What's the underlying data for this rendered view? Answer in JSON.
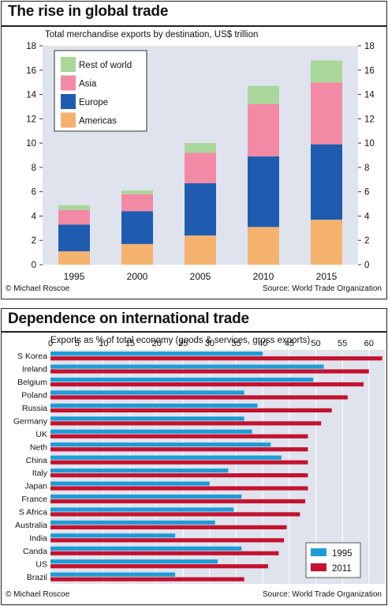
{
  "top": {
    "title": "The rise in global trade",
    "subtitle": "Total merchandise exports by destination, US$ trillion",
    "credit_left": "© Michael Roscoe",
    "credit_right": "Source: World Trade Organization"
  },
  "bottom": {
    "title": "Dependence on international trade",
    "subtitle": "Exports as % of total economy (goods & services, gross exports)",
    "credit_left": "© Michael Roscoe",
    "credit_right": "Source: World Trade Organization"
  },
  "chart_data": [
    {
      "type": "bar",
      "stacked": true,
      "title": "The rise in global trade",
      "subtitle": "Total merchandise exports by destination, US$ trillion",
      "categories": [
        "1995",
        "2000",
        "2005",
        "2010",
        "2015"
      ],
      "series": [
        {
          "name": "Americas",
          "color": "#f5b26f",
          "values": [
            1.1,
            1.7,
            2.4,
            3.1,
            3.7
          ]
        },
        {
          "name": "Europe",
          "color": "#1f5cb0",
          "values": [
            2.2,
            2.7,
            4.3,
            5.8,
            6.2
          ]
        },
        {
          "name": "Asia",
          "color": "#f28aa6",
          "values": [
            1.2,
            1.4,
            2.5,
            4.3,
            5.1
          ]
        },
        {
          "name": "Rest of world",
          "color": "#a9d79a",
          "values": [
            0.4,
            0.3,
            0.8,
            1.5,
            1.8
          ]
        }
      ],
      "ylim": [
        0,
        18
      ],
      "yticks": [
        0,
        2,
        4,
        6,
        8,
        10,
        12,
        14,
        16,
        18
      ],
      "legend_order": [
        "Rest of world",
        "Asia",
        "Europe",
        "Americas"
      ],
      "legend_position": "top-left",
      "plot_background": "#dfe3ee",
      "grid": false
    },
    {
      "type": "bar",
      "orientation": "horizontal",
      "title": "Dependence on international trade",
      "subtitle": "Exports as % of total economy (goods & services, gross exports)",
      "categories": [
        "S Korea",
        "Ireland",
        "Belgium",
        "Poland",
        "Russia",
        "Germany",
        "UK",
        "Neth",
        "China",
        "Italy",
        "Japan",
        "France",
        "S Africa",
        "Australia",
        "India",
        "Canda",
        "US",
        "Brazil"
      ],
      "series": [
        {
          "name": "1995",
          "color": "#1e9bd7",
          "values": [
            40,
            51.5,
            49.5,
            36.5,
            39,
            36.5,
            38,
            41.5,
            43.5,
            33.5,
            30,
            36,
            34.5,
            31,
            23.5,
            36,
            31.5,
            23.5
          ]
        },
        {
          "name": "2011",
          "color": "#c4122f",
          "values": [
            62.5,
            60,
            59,
            56,
            53,
            51,
            48.5,
            48.5,
            48.5,
            48.5,
            48.5,
            48,
            47,
            44.5,
            44,
            43,
            41,
            36.5
          ]
        }
      ],
      "xlim": [
        0,
        63
      ],
      "xticks": [
        0,
        5,
        10,
        15,
        20,
        25,
        30,
        35,
        40,
        45,
        50,
        55,
        60
      ],
      "legend_position": "bottom-right",
      "plot_background": "#dfe3ee",
      "grid": true
    }
  ]
}
